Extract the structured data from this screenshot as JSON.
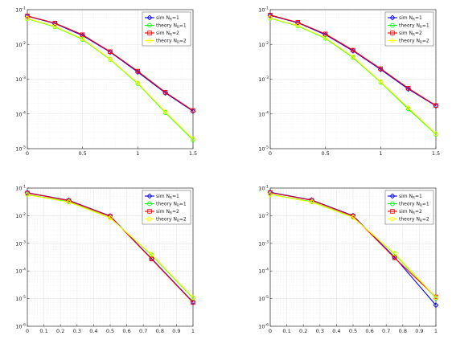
{
  "colors": {
    "sim_n1": "#0000ff",
    "theory_n1": "#00ff00",
    "sim_n2": "#ff0000",
    "theory_n2": "#ffff00",
    "grid": "#e3e3e3",
    "axis": "#333333"
  },
  "chart_data": [
    {
      "type": "line",
      "yscale": "log",
      "grid": true,
      "legend_placement": "top-right",
      "xlim": [
        0,
        1.5
      ],
      "ylim": [
        1e-05,
        0.1
      ],
      "x_ticks": [
        0,
        0.5,
        1,
        1.5
      ],
      "x_tick_labels": [
        "0",
        "0.5",
        "1",
        "1.5"
      ],
      "y_ticks": [
        1e-05,
        0.0001,
        0.001,
        0.01,
        0.1
      ],
      "legend": [
        "sim N_R=1",
        "theory N_R=1",
        "sim N_R=2",
        "theory N_R=2"
      ],
      "x": [
        0,
        0.25,
        0.5,
        0.75,
        1.0,
        1.25,
        1.5
      ],
      "series": [
        {
          "name": "sim N_R=1",
          "values": [
            0.065,
            0.04,
            0.018,
            0.006,
            0.0016,
            0.0004,
            0.00012
          ]
        },
        {
          "name": "theory N_R=1",
          "values": [
            0.055,
            0.032,
            0.014,
            0.0037,
            0.00075,
            0.00011,
            1.8e-05
          ]
        },
        {
          "name": "sim N_R=2",
          "values": [
            0.066,
            0.041,
            0.019,
            0.0062,
            0.0017,
            0.00042,
            0.000125
          ]
        },
        {
          "name": "theory N_R=2",
          "values": [
            0.056,
            0.033,
            0.0145,
            0.0038,
            0.00078,
            0.000115,
            1.9e-05
          ]
        }
      ]
    },
    {
      "type": "line",
      "yscale": "log",
      "grid": true,
      "legend_placement": "top-right",
      "xlim": [
        0,
        1.5
      ],
      "ylim": [
        1e-05,
        0.1
      ],
      "x_ticks": [
        0,
        0.5,
        1,
        1.5
      ],
      "x_tick_labels": [
        "0",
        "0.5",
        "1",
        "1.5"
      ],
      "y_ticks": [
        1e-05,
        0.0001,
        0.001,
        0.01,
        0.1
      ],
      "legend": [
        "sim N_R=1",
        "theory N_R=1",
        "sim N_R=2",
        "theory N_R=2"
      ],
      "x": [
        0,
        0.25,
        0.5,
        0.75,
        1.0,
        1.25,
        1.5
      ],
      "series": [
        {
          "name": "sim N_R=1",
          "values": [
            0.068,
            0.042,
            0.019,
            0.0065,
            0.0019,
            0.00052,
            0.00017
          ]
        },
        {
          "name": "theory N_R=1",
          "values": [
            0.057,
            0.034,
            0.015,
            0.0042,
            0.00082,
            0.00014,
            2.6e-05
          ]
        },
        {
          "name": "sim N_R=2",
          "values": [
            0.07,
            0.043,
            0.02,
            0.0068,
            0.002,
            0.00055,
            0.000175
          ]
        },
        {
          "name": "theory N_R=2",
          "values": [
            0.058,
            0.035,
            0.0155,
            0.0044,
            0.00085,
            0.00015,
            2.7e-05
          ]
        }
      ]
    },
    {
      "type": "line",
      "yscale": "log",
      "grid": true,
      "legend_placement": "top-right",
      "xlim": [
        0,
        1
      ],
      "ylim": [
        1e-06,
        0.1
      ],
      "x_ticks": [
        0,
        0.1,
        0.2,
        0.3,
        0.4,
        0.5,
        0.6,
        0.7,
        0.8,
        0.9,
        1
      ],
      "x_tick_labels": [
        "0",
        "0.1",
        "0.2",
        "0.3",
        "0.4",
        "0.5",
        "0.6",
        "0.7",
        "0.8",
        "0.9",
        "1"
      ],
      "y_ticks": [
        1e-06,
        1e-05,
        0.0001,
        0.001,
        0.01,
        0.1
      ],
      "legend": [
        "sim N_R=1",
        "theory N_R=1",
        "sim N_R=2",
        "theory N_R=2"
      ],
      "x": [
        0,
        0.25,
        0.5,
        0.75,
        1.0
      ],
      "series": [
        {
          "name": "sim N_R=1",
          "values": [
            0.068,
            0.036,
            0.0098,
            0.00028,
            7.5e-06
          ]
        },
        {
          "name": "theory N_R=1",
          "values": [
            0.058,
            0.032,
            0.0085,
            0.00038,
            1.05e-05
          ]
        },
        {
          "name": "sim N_R=2",
          "values": [
            0.066,
            0.035,
            0.0095,
            0.00027,
            7.2e-06
          ]
        },
        {
          "name": "theory N_R=2",
          "values": [
            0.057,
            0.031,
            0.0083,
            0.0004,
            1.1e-05
          ]
        }
      ]
    },
    {
      "type": "line",
      "yscale": "log",
      "grid": true,
      "legend_placement": "top-right",
      "xlim": [
        0,
        1
      ],
      "ylim": [
        1e-06,
        0.1
      ],
      "x_ticks": [
        0,
        0.1,
        0.2,
        0.3,
        0.4,
        0.5,
        0.6,
        0.7,
        0.8,
        0.9,
        1
      ],
      "x_tick_labels": [
        "0",
        "0.1",
        "0.2",
        "0.3",
        "0.4",
        "0.5",
        "0.6",
        "0.7",
        "0.8",
        "0.9",
        "1"
      ],
      "y_ticks": [
        1e-06,
        1e-05,
        0.0001,
        0.001,
        0.01,
        0.1
      ],
      "legend": [
        "sim N_R=1",
        "theory N_R=1",
        "sim N_R=2",
        "theory N_R=2"
      ],
      "x": [
        0,
        0.25,
        0.5,
        0.75,
        1.0
      ],
      "series": [
        {
          "name": "sim N_R=1",
          "values": [
            0.07,
            0.037,
            0.01,
            0.00032,
            5.8e-06
          ]
        },
        {
          "name": "theory N_R=1",
          "values": [
            0.059,
            0.032,
            0.0088,
            0.00042,
            1.05e-05
          ]
        },
        {
          "name": "sim N_R=2",
          "values": [
            0.068,
            0.036,
            0.0097,
            0.0003,
            1.15e-05
          ]
        },
        {
          "name": "theory N_R=2",
          "values": [
            0.058,
            0.031,
            0.0086,
            0.00044,
            1.1e-05
          ]
        }
      ]
    }
  ]
}
